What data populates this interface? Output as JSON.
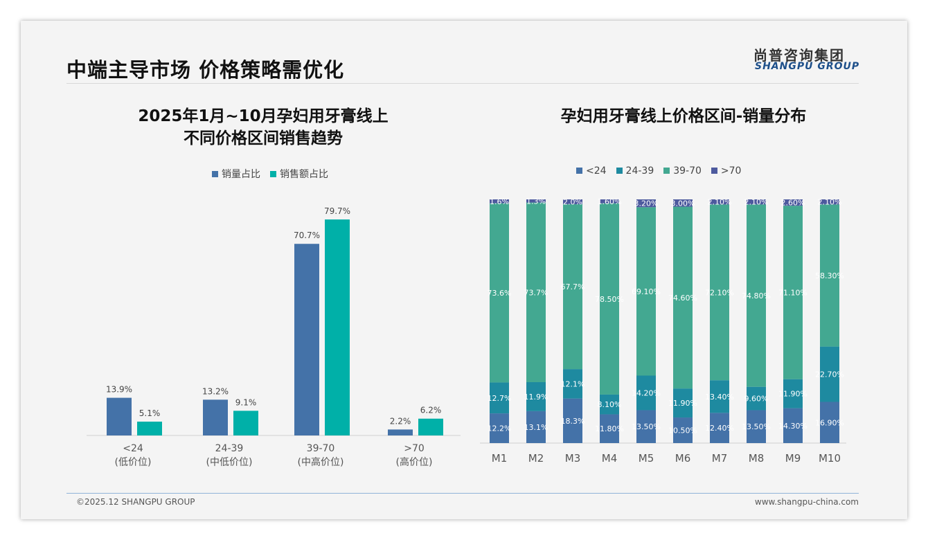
{
  "header": {
    "title": "中端主导市场 价格策略需优化",
    "logo_cn": "尚普咨询集团",
    "logo_en": "SHANGPU GROUP"
  },
  "footer": {
    "copyright": "©2025.12 SHANGPU GROUP",
    "url": "www.shangpu-china.com"
  },
  "colors": {
    "sales_volume": "#4472a8",
    "sales_amount": "#00b0a8",
    "lt24": "#4472a8",
    "r24_39": "#1e8aa0",
    "r39_70": "#43a891",
    "gt70": "#4d5a9e"
  },
  "chart_data": [
    {
      "type": "bar",
      "title_line1": "2025年1月~10月孕妇用牙膏线上",
      "title_line2": "不同价格区间销售趋势",
      "categories": [
        "<24",
        "24-39",
        "39-70",
        ">70"
      ],
      "sublabels": [
        "(低价位)",
        "(中低价位)",
        "(中高价位)",
        "(高价位)"
      ],
      "series": [
        {
          "name": "销量占比",
          "values": [
            13.9,
            13.2,
            70.7,
            2.2
          ]
        },
        {
          "name": "销售额占比",
          "values": [
            5.1,
            9.1,
            79.7,
            6.2
          ]
        }
      ],
      "ylim": [
        0,
        80
      ],
      "unit": "%"
    },
    {
      "type": "bar",
      "stacked": true,
      "title": "孕妇用牙膏线上价格区间-销量分布",
      "categories": [
        "M1",
        "M2",
        "M3",
        "M4",
        "M5",
        "M6",
        "M7",
        "M8",
        "M9",
        "M10"
      ],
      "series": [
        {
          "name": "<24",
          "values": [
            12.2,
            13.1,
            18.3,
            11.8,
            13.5,
            10.5,
            12.4,
            13.5,
            14.3,
            16.9
          ],
          "labels": [
            "12.2%",
            "13.1%",
            "18.3%",
            "11.80%",
            "13.50%",
            "10.50%",
            "12.40%",
            "13.50%",
            "14.30%",
            "16.90%"
          ]
        },
        {
          "name": "24-39",
          "values": [
            12.7,
            11.9,
            12.1,
            8.1,
            14.2,
            11.9,
            13.4,
            9.6,
            11.9,
            22.7
          ],
          "labels": [
            "12.7%",
            "11.9%",
            "12.1%",
            "8.10%",
            "14.20%",
            "11.90%",
            "13.40%",
            "9.60%",
            "11.90%",
            "22.70%"
          ]
        },
        {
          "name": "39-70",
          "values": [
            73.6,
            73.7,
            67.7,
            78.5,
            69.1,
            74.6,
            72.1,
            74.8,
            71.1,
            58.3
          ],
          "labels": [
            "73.6%",
            "73.7%",
            "67.7%",
            "78.50%",
            "69.10%",
            "74.60%",
            "72.10%",
            "74.80%",
            "71.10%",
            "58.30%"
          ]
        },
        {
          "name": ">70",
          "values": [
            1.6,
            1.3,
            2.0,
            1.6,
            3.2,
            3.0,
            2.1,
            2.1,
            2.6,
            2.1
          ],
          "labels": [
            "1.6%",
            "1.3%",
            "2.0%",
            "1.60%",
            "3.20%",
            "3.00%",
            "2.10%",
            "2.10%",
            "2.60%",
            "2.10%"
          ]
        }
      ],
      "ylim": [
        0,
        100
      ]
    }
  ]
}
